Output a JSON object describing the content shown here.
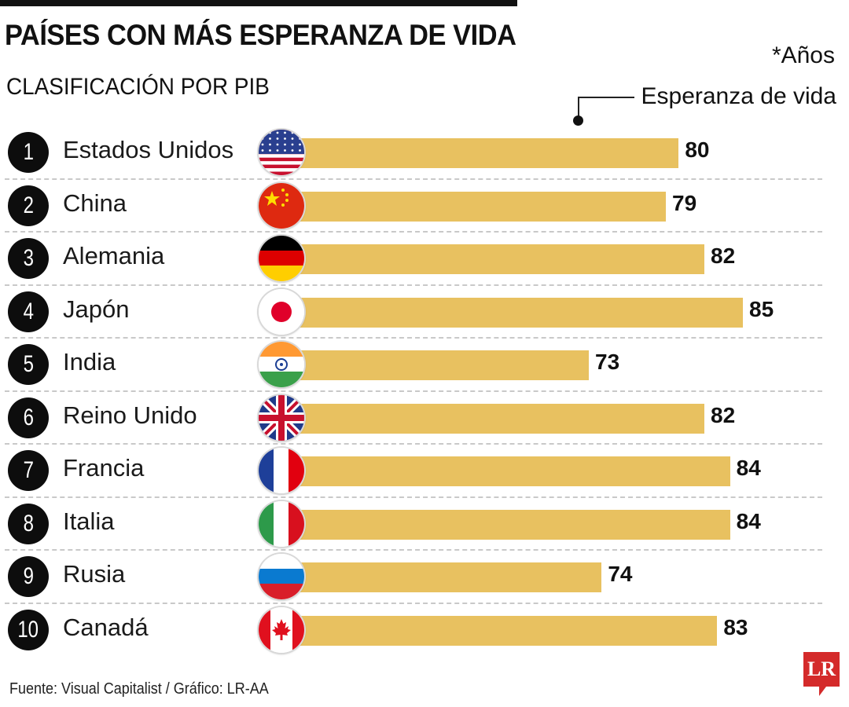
{
  "header": {
    "title": "PAÍSES CON MÁS ESPERANZA DE VIDA",
    "subtitle": "CLASIFICACIÓN POR PIB",
    "units": "*Años",
    "legend_label": "Esperanza de vida"
  },
  "footer": {
    "source": "Fuente: Visual Capitalist / Gráfico: LR-AA",
    "logo": "LR"
  },
  "colors": {
    "bar": "#e8c160",
    "rank_badge": "#0d0d0d",
    "logo": "#d42a2a"
  },
  "chart_data": {
    "type": "bar",
    "orientation": "horizontal",
    "title": "PAÍSES CON MÁS ESPERANZA DE VIDA",
    "subtitle": "CLASIFICACIÓN POR PIB",
    "xlabel": "Esperanza de vida (*Años)",
    "ylabel": "",
    "categories": [
      "Estados Unidos",
      "China",
      "Alemania",
      "Japón",
      "India",
      "Reino Unido",
      "Francia",
      "Italia",
      "Rusia",
      "Canadá"
    ],
    "ranks": [
      1,
      2,
      3,
      4,
      5,
      6,
      7,
      8,
      9,
      10
    ],
    "flags": [
      "us-flag",
      "china-flag",
      "germany-flag",
      "japan-flag",
      "india-flag",
      "uk-flag",
      "france-flag",
      "italy-flag",
      "russia-flag",
      "canada-flag"
    ],
    "values": [
      80,
      79,
      82,
      85,
      73,
      82,
      84,
      84,
      74,
      83
    ],
    "value_labels": [
      "80",
      "79",
      "82",
      "85",
      "73",
      "82",
      "84",
      "84",
      "74",
      "83"
    ],
    "grid": false,
    "legend": "top-right"
  }
}
